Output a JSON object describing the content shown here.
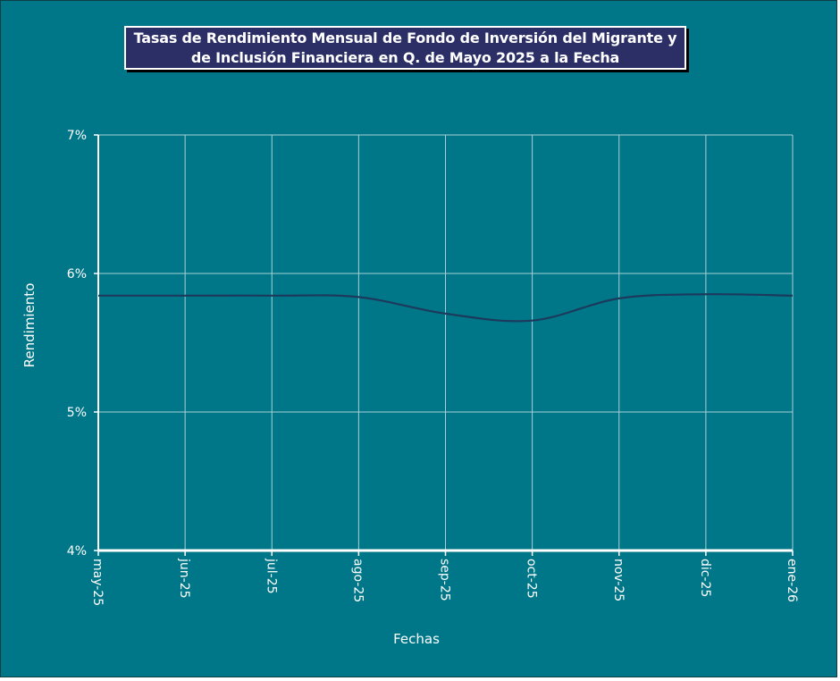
{
  "chart_data": {
    "type": "line",
    "title_lines": [
      "Tasas de Rendimiento Mensual de Fondo de Inversión del Migrante y",
      "de Inclusión Financiera en Q. de Mayo 2025 a la Fecha"
    ],
    "xlabel": "Fechas",
    "ylabel": "Rendimiento",
    "categories": [
      "may-25",
      "jun-25",
      "jul-25",
      "ago-25",
      "sep-25",
      "oct-25",
      "nov-25",
      "dic-25",
      "ene-26"
    ],
    "ylim": [
      4,
      7
    ],
    "yticks": [
      4,
      5,
      6,
      7
    ],
    "ytick_labels": [
      "4%",
      "5%",
      "6%",
      "7%"
    ],
    "grid": true,
    "series": [
      {
        "values": [
          5.84,
          5.84,
          5.84,
          5.83,
          5.71,
          5.66,
          5.82,
          5.85,
          5.84
        ],
        "color": "#1b3a5c"
      }
    ],
    "colors": {
      "background": "#007789",
      "gridline": "#a8d0d6",
      "axis": "#ffffff",
      "title_bg": "#2b2f66"
    }
  }
}
